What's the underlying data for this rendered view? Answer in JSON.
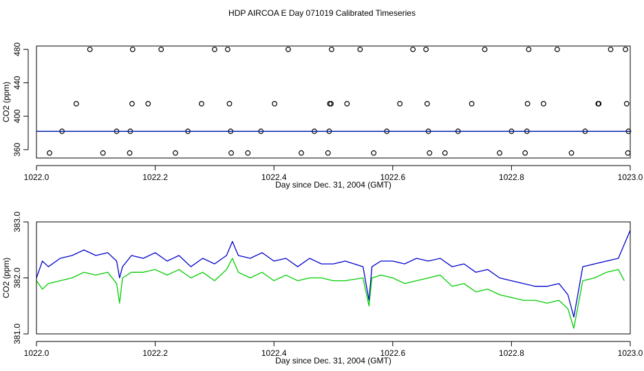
{
  "title": "HDP AIRCOA E  Day 071019  Calibrated Timeseries",
  "chart_data": [
    {
      "type": "scatter",
      "xlabel": "Day since Dec. 31, 2004 (GMT)",
      "ylabel": "CO2 (ppm)",
      "xlim": [
        1022.0,
        1023.0
      ],
      "ylim": [
        350,
        484
      ],
      "xticks": [
        1022.0,
        1022.2,
        1022.4,
        1022.6,
        1022.8,
        1023.0
      ],
      "xtick_labels": [
        "1022.0",
        "1022.2",
        "1022.4",
        "1022.6",
        "1022.8",
        "1023.0"
      ],
      "yticks": [
        360,
        400,
        440,
        480
      ],
      "ytick_labels": [
        "360",
        "400",
        "440",
        "480"
      ],
      "grid": false,
      "series": [
        {
          "color": "#000000",
          "marker": "open-circle",
          "x": [
            1022.09,
            1022.162,
            1022.21,
            1022.3,
            1022.322,
            1022.424,
            1022.497,
            1022.545,
            1022.634,
            1022.656,
            1022.755,
            1022.829,
            1022.877,
            1022.967,
            1022.992,
            1022.067,
            1022.161,
            1022.188,
            1022.278,
            1022.325,
            1022.401,
            1022.494,
            1022.496,
            1022.523,
            1022.612,
            1022.658,
            1022.733,
            1022.827,
            1022.854,
            1022.946,
            1022.947,
            1022.994,
            1022.043,
            1022.135,
            1022.158,
            1022.255,
            1022.327,
            1022.378,
            1022.468,
            1022.493,
            1022.59,
            1022.66,
            1022.71,
            1022.8,
            1022.826,
            1022.924,
            1022.997,
            1022.022,
            1022.112,
            1022.157,
            1022.234,
            1022.328,
            1022.356,
            1022.446,
            1022.491,
            1022.568,
            1022.662,
            1022.688,
            1022.78,
            1022.823,
            1022.901,
            1022.996
          ],
          "y": [
            480,
            480,
            480,
            480,
            480,
            480,
            480,
            480,
            480,
            480,
            480,
            480,
            480,
            480,
            480,
            415,
            415,
            415,
            415,
            415,
            415,
            415,
            415,
            415,
            415,
            415,
            415,
            415,
            415,
            415,
            415,
            415,
            382,
            382,
            382,
            382,
            382,
            382,
            382,
            382,
            382,
            382,
            382,
            382,
            382,
            382,
            382,
            356,
            356,
            356,
            356,
            356,
            356,
            356,
            356,
            356,
            356,
            356,
            356,
            356,
            356,
            356
          ]
        },
        {
          "color": "#00cc00",
          "x": [
            1022.0,
            1023.0
          ],
          "y": [
            381.8,
            381.8
          ]
        },
        {
          "color": "#0000cc",
          "x": [
            1022.0,
            1023.0
          ],
          "y": [
            382.0,
            382.0
          ]
        }
      ]
    },
    {
      "type": "line",
      "xlabel": "Day since Dec. 31, 2004 (GMT)",
      "ylabel": "CO2 (ppm)",
      "xlim": [
        1022.0,
        1023.0
      ],
      "ylim": [
        381.0,
        383.0
      ],
      "xticks": [
        1022.0,
        1022.2,
        1022.4,
        1022.6,
        1022.8,
        1023.0
      ],
      "xtick_labels": [
        "1022.0",
        "1022.2",
        "1022.4",
        "1022.6",
        "1022.8",
        "1023.0"
      ],
      "yticks": [
        381.0,
        382.0,
        383.0
      ],
      "ytick_labels": [
        "381.0",
        "382.0",
        "383.0"
      ],
      "grid": false,
      "series": [
        {
          "color": "#0000cc",
          "x": [
            1022.0,
            1022.01,
            1022.02,
            1022.04,
            1022.06,
            1022.08,
            1022.1,
            1022.12,
            1022.135,
            1022.14,
            1022.145,
            1022.16,
            1022.18,
            1022.2,
            1022.22,
            1022.24,
            1022.26,
            1022.28,
            1022.3,
            1022.32,
            1022.33,
            1022.34,
            1022.36,
            1022.38,
            1022.4,
            1022.42,
            1022.44,
            1022.46,
            1022.48,
            1022.5,
            1022.52,
            1022.55,
            1022.56,
            1022.565,
            1022.58,
            1022.6,
            1022.62,
            1022.64,
            1022.66,
            1022.68,
            1022.7,
            1022.72,
            1022.74,
            1022.76,
            1022.78,
            1022.8,
            1022.82,
            1022.84,
            1022.86,
            1022.88,
            1022.895,
            1022.905,
            1022.92,
            1022.94,
            1022.96,
            1022.98,
            1023.0
          ],
          "y": [
            382.0,
            382.3,
            382.2,
            382.35,
            382.4,
            382.5,
            382.4,
            382.45,
            382.3,
            382.0,
            382.2,
            382.4,
            382.35,
            382.45,
            382.3,
            382.4,
            382.2,
            382.35,
            382.25,
            382.4,
            382.65,
            382.4,
            382.35,
            382.45,
            382.3,
            382.35,
            382.2,
            382.35,
            382.25,
            382.25,
            382.3,
            382.2,
            381.6,
            382.2,
            382.3,
            382.3,
            382.25,
            382.35,
            382.3,
            382.35,
            382.2,
            382.25,
            382.1,
            382.15,
            382.0,
            381.95,
            381.9,
            381.85,
            381.85,
            381.9,
            381.7,
            381.3,
            382.2,
            382.25,
            382.3,
            382.35,
            382.85
          ]
        },
        {
          "color": "#00cc00",
          "x": [
            1022.0,
            1022.01,
            1022.02,
            1022.04,
            1022.06,
            1022.08,
            1022.1,
            1022.12,
            1022.135,
            1022.14,
            1022.145,
            1022.16,
            1022.18,
            1022.2,
            1022.22,
            1022.24,
            1022.26,
            1022.28,
            1022.3,
            1022.32,
            1022.33,
            1022.34,
            1022.36,
            1022.38,
            1022.4,
            1022.42,
            1022.44,
            1022.46,
            1022.48,
            1022.5,
            1022.52,
            1022.55,
            1022.56,
            1022.565,
            1022.58,
            1022.6,
            1022.62,
            1022.64,
            1022.66,
            1022.68,
            1022.7,
            1022.72,
            1022.74,
            1022.76,
            1022.78,
            1022.8,
            1022.82,
            1022.84,
            1022.86,
            1022.88,
            1022.895,
            1022.905,
            1022.92,
            1022.94,
            1022.96,
            1022.98,
            1022.99
          ],
          "y": [
            381.95,
            381.8,
            381.9,
            381.95,
            382.0,
            382.1,
            382.05,
            382.1,
            381.9,
            381.55,
            382.0,
            382.1,
            382.1,
            382.15,
            382.05,
            382.15,
            382.0,
            382.1,
            381.95,
            382.15,
            382.35,
            382.1,
            382.0,
            382.1,
            381.95,
            382.05,
            381.95,
            382.0,
            382.0,
            381.95,
            381.95,
            382.0,
            381.5,
            382.0,
            382.05,
            382.0,
            381.9,
            381.95,
            382.0,
            382.05,
            381.85,
            381.9,
            381.75,
            381.8,
            381.7,
            381.65,
            381.6,
            381.6,
            381.55,
            381.6,
            381.45,
            381.1,
            381.95,
            382.0,
            382.1,
            382.15,
            381.95
          ]
        }
      ]
    }
  ]
}
